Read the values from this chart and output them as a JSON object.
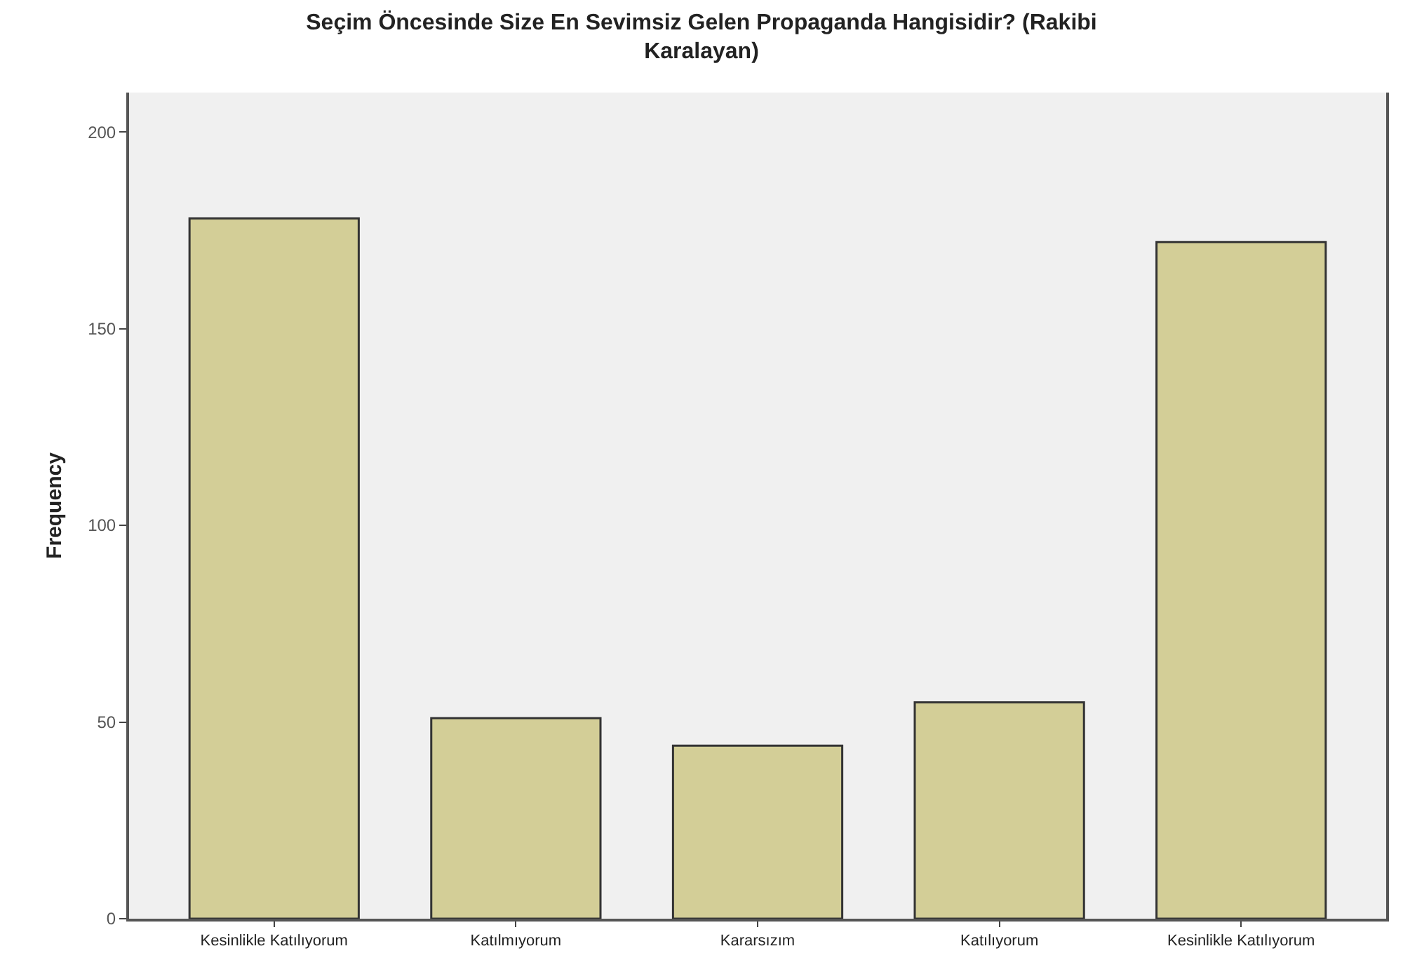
{
  "chart_data": {
    "type": "bar",
    "title": "Seçim Öncesinde Size En Sevimsiz Gelen Propaganda Hangisidir? (Rakibi Karalayan)",
    "ylabel": "Frequency",
    "categories": [
      "Kesinlikle Katılıyorum",
      "Katılmıyorum",
      "Kararsızım",
      "Katılıyorum",
      "Kesinlikle Katılıyorum"
    ],
    "values": [
      178,
      51,
      44,
      55,
      172
    ],
    "color": "#d3ce97",
    "ylim": [
      0,
      210
    ],
    "yticks": [
      0,
      50,
      100,
      150,
      200
    ],
    "grid": false
  }
}
